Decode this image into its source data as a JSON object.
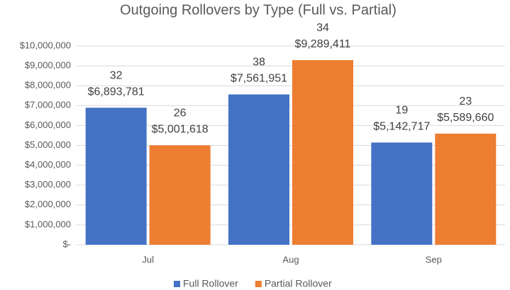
{
  "chart_data": {
    "type": "bar",
    "title": "Outgoing Rollovers by Type (Full vs. Partial)",
    "categories": [
      "Jul",
      "Aug",
      "Sep"
    ],
    "series": [
      {
        "name": "Full Rollover",
        "color": "#4472c4",
        "values": [
          6893781,
          7561951,
          5142717
        ],
        "value_labels": [
          "$6,893,781",
          "$7,561,951",
          "$5,142,717"
        ],
        "counts": [
          32,
          38,
          19
        ]
      },
      {
        "name": "Partial Rollover",
        "color": "#ed7d31",
        "values": [
          5001618,
          9289411,
          5589660
        ],
        "value_labels": [
          "$5,001,618",
          "$9,289,411",
          "$5,589,660"
        ],
        "counts": [
          26,
          34,
          23
        ]
      }
    ],
    "ylim": [
      0,
      10000000
    ],
    "yticks": [
      {
        "value": 0,
        "label": "$-"
      },
      {
        "value": 1000000,
        "label": "$1,000,000"
      },
      {
        "value": 2000000,
        "label": "$2,000,000"
      },
      {
        "value": 3000000,
        "label": "$3,000,000"
      },
      {
        "value": 4000000,
        "label": "$4,000,000"
      },
      {
        "value": 5000000,
        "label": "$5,000,000"
      },
      {
        "value": 6000000,
        "label": "$6,000,000"
      },
      {
        "value": 7000000,
        "label": "$7,000,000"
      },
      {
        "value": 8000000,
        "label": "$8,000,000"
      },
      {
        "value": 9000000,
        "label": "$9,000,000"
      },
      {
        "value": 10000000,
        "label": "$10,000,000"
      }
    ],
    "grid": true,
    "legend": "bottom"
  }
}
